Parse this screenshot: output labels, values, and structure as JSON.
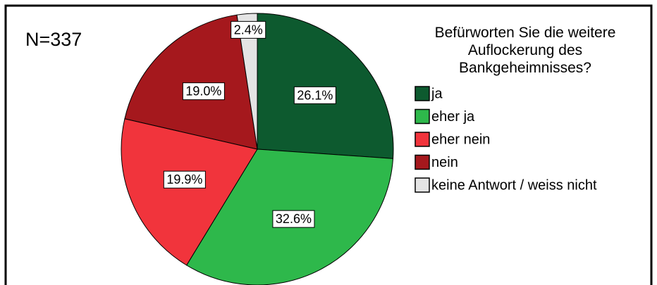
{
  "chart_data": {
    "type": "pie",
    "title": "Befürworten Sie die weitere Auflockerung des Bankgeheimnisses?",
    "annotation": "N=337",
    "categories": [
      "ja",
      "eher ja",
      "eher nein",
      "nein",
      "keine Antwort / weiss nicht"
    ],
    "values": [
      26.1,
      32.6,
      19.9,
      19.0,
      2.4
    ],
    "value_labels": [
      "26.1%",
      "32.6%",
      "19.9%",
      "19.0%",
      "2.4%"
    ],
    "colors": [
      "#0d5a2f",
      "#2eb84b",
      "#f1343c",
      "#a5181d",
      "#e4e4e4"
    ],
    "legend": "right"
  }
}
